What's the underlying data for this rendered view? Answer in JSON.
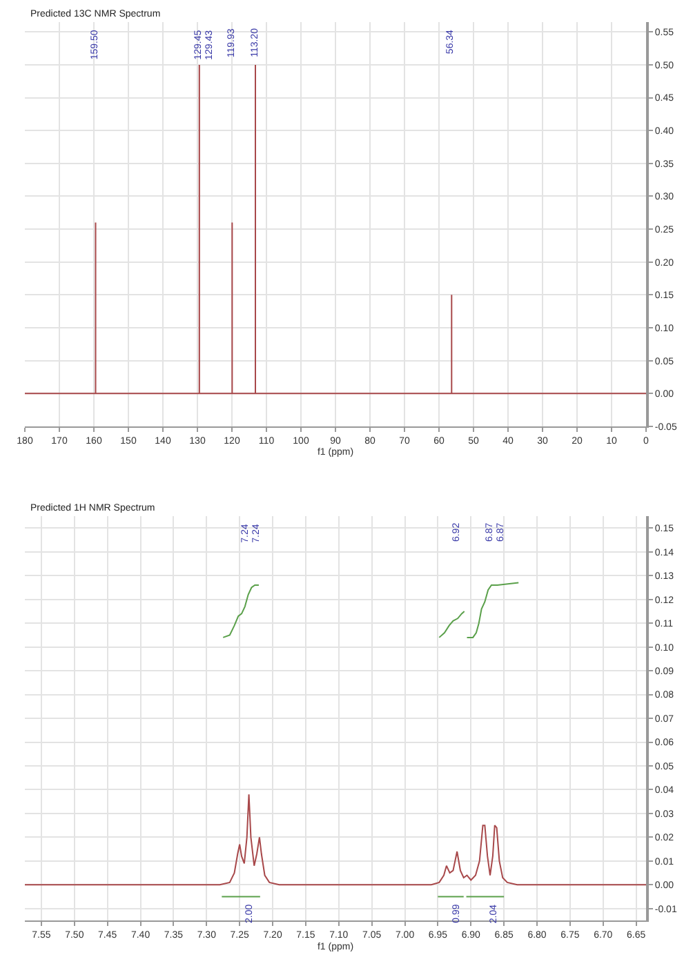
{
  "chart_data": [
    {
      "type": "line",
      "title": "Predicted 13C NMR Spectrum",
      "xlabel": "f1 (ppm)",
      "grid": true,
      "xlim": [
        180,
        0
      ],
      "xticks": [
        180,
        170,
        160,
        150,
        140,
        130,
        120,
        110,
        100,
        90,
        80,
        70,
        60,
        50,
        40,
        30,
        20,
        10,
        0
      ],
      "ylim": [
        -0.05,
        0.565
      ],
      "yticks": [
        {
          "value": -0.05,
          "label": "-0.05"
        },
        {
          "value": 0,
          "label": "0.00"
        },
        {
          "value": 0.05,
          "label": "0.05"
        },
        {
          "value": 0.1,
          "label": "0.10"
        },
        {
          "value": 0.15,
          "label": "0.15"
        },
        {
          "value": 0.2,
          "label": "0.20"
        },
        {
          "value": 0.25,
          "label": "0.25"
        },
        {
          "value": 0.3,
          "label": "0.30"
        },
        {
          "value": 0.35,
          "label": "0.35"
        },
        {
          "value": 0.4,
          "label": "0.40"
        },
        {
          "value": 0.45,
          "label": "0.45"
        },
        {
          "value": 0.5,
          "label": "0.50"
        },
        {
          "value": 0.55,
          "label": "0.55"
        }
      ],
      "series": [
        {
          "color": "#a8484a",
          "x": [
            180,
            159.5,
            159.5,
            159.5,
            129.45,
            129.45,
            129.45,
            129.43,
            129.43,
            129.43,
            119.93,
            119.93,
            119.93,
            113.2,
            113.2,
            113.2,
            56.34,
            56.34,
            56.34,
            0
          ],
          "values": [
            0,
            0,
            0.26,
            0,
            0,
            0.5,
            0,
            0,
            0.5,
            0,
            0,
            0.26,
            0,
            0,
            0.5,
            0,
            0,
            0.15,
            0,
            0
          ]
        }
      ],
      "annotations": [
        "159.50",
        "129.45",
        "129.43",
        "119.93",
        "113.20",
        "56.34"
      ]
    },
    {
      "type": "line",
      "title": "Predicted 1H NMR Spectrum",
      "xlabel": "f1 (ppm)",
      "grid": true,
      "xlim": [
        7.575,
        6.635
      ],
      "xticks": [
        {
          "value": 7.55,
          "label": "7.55"
        },
        {
          "value": 7.5,
          "label": "7.50"
        },
        {
          "value": 7.45,
          "label": "7.45"
        },
        {
          "value": 7.4,
          "label": "7.40"
        },
        {
          "value": 7.35,
          "label": "7.35"
        },
        {
          "value": 7.3,
          "label": "7.30"
        },
        {
          "value": 7.25,
          "label": "7.25"
        },
        {
          "value": 7.2,
          "label": "7.20"
        },
        {
          "value": 7.15,
          "label": "7.15"
        },
        {
          "value": 7.1,
          "label": "7.10"
        },
        {
          "value": 7.05,
          "label": "7.05"
        },
        {
          "value": 7.0,
          "label": "7.00"
        },
        {
          "value": 6.95,
          "label": "6.95"
        },
        {
          "value": 6.9,
          "label": "6.90"
        },
        {
          "value": 6.85,
          "label": "6.85"
        },
        {
          "value": 6.8,
          "label": "6.80"
        },
        {
          "value": 6.75,
          "label": "6.75"
        },
        {
          "value": 6.7,
          "label": "6.70"
        },
        {
          "value": 6.65,
          "label": "6.65"
        }
      ],
      "ylim": [
        -0.015,
        0.155
      ],
      "yticks": [
        {
          "value": -0.01,
          "label": "-0.01"
        },
        {
          "value": 0,
          "label": "0.00"
        },
        {
          "value": 0.01,
          "label": "0.01"
        },
        {
          "value": 0.02,
          "label": "0.02"
        },
        {
          "value": 0.03,
          "label": "0.03"
        },
        {
          "value": 0.04,
          "label": "0.04"
        },
        {
          "value": 0.05,
          "label": "0.05"
        },
        {
          "value": 0.06,
          "label": "0.06"
        },
        {
          "value": 0.07,
          "label": "0.07"
        },
        {
          "value": 0.08,
          "label": "0.08"
        },
        {
          "value": 0.09,
          "label": "0.09"
        },
        {
          "value": 0.1,
          "label": "0.10"
        },
        {
          "value": 0.11,
          "label": "0.11"
        },
        {
          "value": 0.12,
          "label": "0.12"
        },
        {
          "value": 0.13,
          "label": "0.13"
        },
        {
          "value": 0.14,
          "label": "0.14"
        },
        {
          "value": 0.15,
          "label": "0.15"
        }
      ],
      "series": [
        {
          "color": "#a8484a",
          "x": [
            7.575,
            7.28,
            7.265,
            7.258,
            7.253,
            7.25,
            7.247,
            7.243,
            7.239,
            7.236,
            7.233,
            7.228,
            7.224,
            7.22,
            7.217,
            7.212,
            7.205,
            7.19,
            6.96,
            6.948,
            6.941,
            6.937,
            6.932,
            6.927,
            6.921,
            6.916,
            6.911,
            6.906,
            6.9,
            6.893,
            6.887,
            6.882,
            6.879,
            6.875,
            6.871,
            6.867,
            6.864,
            6.861,
            6.857,
            6.852,
            6.845,
            6.83,
            6.635
          ],
          "values": [
            0,
            0,
            0.001,
            0.005,
            0.013,
            0.017,
            0.012,
            0.009,
            0.02,
            0.038,
            0.02,
            0.008,
            0.013,
            0.02,
            0.013,
            0.004,
            0.001,
            0,
            0,
            0.001,
            0.004,
            0.008,
            0.005,
            0.006,
            0.014,
            0.006,
            0.003,
            0.004,
            0.002,
            0.004,
            0.01,
            0.025,
            0.025,
            0.012,
            0.004,
            0.012,
            0.025,
            0.024,
            0.01,
            0.003,
            0.001,
            0,
            0
          ]
        },
        {
          "color": "#5aa04a",
          "x": [
            7.275,
            7.265,
            7.258,
            7.252,
            7.247,
            7.242,
            7.237,
            7.232,
            7.227,
            7.221
          ],
          "values": [
            0.104,
            0.105,
            0.109,
            0.113,
            0.114,
            0.117,
            0.122,
            0.125,
            0.126,
            0.126
          ]
        },
        {
          "color": "#5aa04a",
          "x": [
            6.948,
            6.94,
            6.933,
            6.927,
            6.92,
            6.914,
            6.91
          ],
          "values": [
            0.104,
            0.106,
            0.109,
            0.111,
            0.112,
            0.114,
            0.115
          ]
        },
        {
          "color": "#5aa04a",
          "x": [
            6.906,
            6.897,
            6.892,
            6.888,
            6.884,
            6.879,
            6.874,
            6.869,
            6.86,
            6.828
          ],
          "values": [
            0.104,
            0.104,
            0.106,
            0.11,
            0.116,
            0.119,
            0.124,
            0.126,
            0.126,
            0.127
          ]
        },
        {
          "color": "#5aa04a",
          "x": [
            7.277,
            7.219
          ],
          "values": [
            -0.005,
            -0.005
          ]
        },
        {
          "color": "#5aa04a",
          "x": [
            6.95,
            6.911,
            6.909,
            6.907,
            6.85
          ],
          "values": [
            -0.005,
            -0.005,
            null,
            -0.005,
            -0.005
          ]
        }
      ],
      "annotations": [
        "7.24",
        "7.24",
        "6.92",
        "6.87",
        "6.87",
        {
          "text": "2.00",
          "x": 7.235,
          "y": -0.007
        },
        {
          "text": "0.99",
          "x": 6.922,
          "y": -0.007
        },
        {
          "text": "2.04",
          "x": 6.865,
          "y": -0.007
        }
      ]
    }
  ]
}
